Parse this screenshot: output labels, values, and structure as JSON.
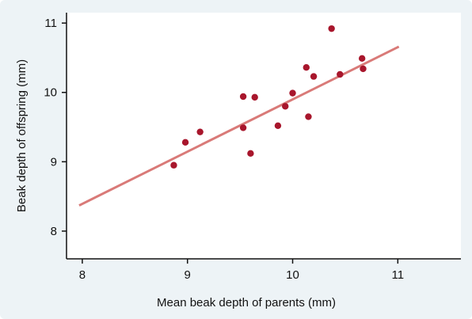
{
  "chart_data": {
    "type": "scatter",
    "title": "",
    "xlabel": "Mean beak depth of parents (mm)",
    "ylabel": "Beak depth of offspring (mm)",
    "xlim": [
      7.85,
      11.6
    ],
    "ylim": [
      7.6,
      11.15
    ],
    "x_ticks": [
      8,
      9,
      10,
      11
    ],
    "y_ticks": [
      8,
      9,
      10,
      11
    ],
    "x_tick_labels": [
      "8",
      "9",
      "10",
      "11"
    ],
    "y_tick_labels": [
      "8",
      "9",
      "10",
      "11"
    ],
    "grid": false,
    "colors": {
      "points": "#a8162c",
      "line": "#d97a78",
      "axis": "#111111",
      "background": "#edf3f6"
    },
    "series": [
      {
        "type": "scatter",
        "points": [
          {
            "x": 8.87,
            "y": 8.95
          },
          {
            "x": 8.98,
            "y": 9.28
          },
          {
            "x": 9.12,
            "y": 9.43
          },
          {
            "x": 9.53,
            "y": 9.94
          },
          {
            "x": 9.53,
            "y": 9.49
          },
          {
            "x": 9.6,
            "y": 9.12
          },
          {
            "x": 9.64,
            "y": 9.93
          },
          {
            "x": 9.86,
            "y": 9.52
          },
          {
            "x": 9.93,
            "y": 9.8
          },
          {
            "x": 10.0,
            "y": 9.99
          },
          {
            "x": 10.13,
            "y": 10.36
          },
          {
            "x": 10.15,
            "y": 9.65
          },
          {
            "x": 10.2,
            "y": 10.23
          },
          {
            "x": 10.37,
            "y": 10.92
          },
          {
            "x": 10.45,
            "y": 10.26
          },
          {
            "x": 10.66,
            "y": 10.49
          },
          {
            "x": 10.67,
            "y": 10.34
          }
        ]
      },
      {
        "type": "line",
        "points": [
          {
            "x": 7.97,
            "y": 8.37
          },
          {
            "x": 11.01,
            "y": 10.66
          }
        ]
      }
    ]
  }
}
